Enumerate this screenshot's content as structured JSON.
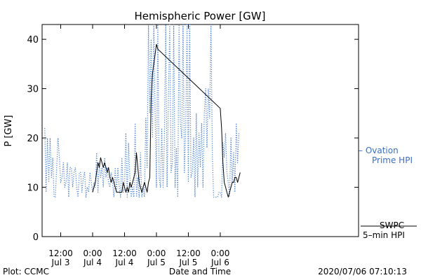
{
  "chart_data": {
    "type": "line",
    "title": "Hemispheric Power [GW]",
    "xlabel": "Date and Time",
    "ylabel": "P [GW]",
    "ylim": [
      0,
      43
    ],
    "xlim": [
      -19,
      100
    ],
    "x_unit": "hours from 2020-07-04 00:00",
    "yticks": [
      0,
      10,
      20,
      30,
      40
    ],
    "xticks": [
      {
        "x": -12,
        "time": "12:00",
        "day": "Jul 3"
      },
      {
        "x": 0,
        "time": "0:00",
        "day": "Jul 4"
      },
      {
        "x": 12,
        "time": "12:00",
        "day": "Jul 4"
      },
      {
        "x": 24,
        "time": "0:00",
        "day": "Jul 5"
      },
      {
        "x": 36,
        "time": "12:00",
        "day": "Jul 5"
      },
      {
        "x": 48,
        "time": "0:00",
        "day": "Jul 6"
      }
    ],
    "legend_placement": "right",
    "series": [
      {
        "name": "Ovation Prime HPI",
        "legend_dash": "–",
        "color": "#4a7fd0",
        "style": "dotted",
        "points": [
          [
            -18,
            22
          ],
          [
            -17.5,
            9
          ],
          [
            -17,
            20
          ],
          [
            -16.5,
            11
          ],
          [
            -16,
            20
          ],
          [
            -15.5,
            12
          ],
          [
            -15,
            16
          ],
          [
            -14.5,
            8
          ],
          [
            -14,
            8
          ],
          [
            -13.5,
            14
          ],
          [
            -13,
            20
          ],
          [
            -12.5,
            16
          ],
          [
            -12,
            11
          ],
          [
            -11.5,
            12
          ],
          [
            -11,
            15
          ],
          [
            -10.5,
            10
          ],
          [
            -10,
            11
          ],
          [
            -9.5,
            15
          ],
          [
            -9,
            8
          ],
          [
            -8.5,
            14
          ],
          [
            -8,
            14
          ],
          [
            -7.5,
            10
          ],
          [
            -7,
            13
          ],
          [
            -6.5,
            14
          ],
          [
            -6,
            10
          ],
          [
            -5.5,
            8
          ],
          [
            -5,
            13
          ],
          [
            -4.5,
            13
          ],
          [
            -4,
            9
          ],
          [
            -3.5,
            12
          ],
          [
            -3,
            13
          ],
          [
            -2.5,
            8
          ],
          [
            -2,
            10
          ],
          [
            -1.5,
            9
          ],
          [
            -1,
            13
          ],
          [
            -0.5,
            11
          ],
          [
            0,
            9
          ],
          [
            0.5,
            11
          ],
          [
            1,
            10
          ],
          [
            1.5,
            17
          ],
          [
            2,
            9
          ],
          [
            2.5,
            15
          ],
          [
            3,
            12
          ],
          [
            3.5,
            14
          ],
          [
            4,
            10
          ],
          [
            4.5,
            16
          ],
          [
            5,
            12
          ],
          [
            5.5,
            14
          ],
          [
            6,
            11
          ],
          [
            6.5,
            10
          ],
          [
            7,
            13
          ],
          [
            7.5,
            11
          ],
          [
            8,
            8
          ],
          [
            8.5,
            14
          ],
          [
            9,
            9
          ],
          [
            9.5,
            14
          ],
          [
            10,
            10
          ],
          [
            10.5,
            8
          ],
          [
            11,
            16
          ],
          [
            11.5,
            9
          ],
          [
            12,
            10
          ],
          [
            12.5,
            21
          ],
          [
            13,
            8
          ],
          [
            13.5,
            19
          ],
          [
            14,
            12
          ],
          [
            14.5,
            8
          ],
          [
            15,
            10
          ],
          [
            15.5,
            8
          ],
          [
            16,
            23
          ],
          [
            16.5,
            8
          ],
          [
            17,
            12
          ],
          [
            17.5,
            8
          ],
          [
            18,
            17
          ],
          [
            18.5,
            8
          ],
          [
            19,
            10
          ],
          [
            19.5,
            8
          ],
          [
            20,
            24
          ],
          [
            20.5,
            14
          ],
          [
            21,
            43
          ],
          [
            21.5,
            25
          ],
          [
            22,
            40
          ],
          [
            22.5,
            20
          ],
          [
            23,
            43
          ],
          [
            23.5,
            25
          ],
          [
            24,
            10
          ],
          [
            24.5,
            43
          ],
          [
            25,
            12
          ],
          [
            25.5,
            10
          ],
          [
            26,
            22
          ],
          [
            26.5,
            10
          ],
          [
            27,
            20
          ],
          [
            27.5,
            43
          ],
          [
            28,
            10
          ],
          [
            28.5,
            28
          ],
          [
            29,
            43
          ],
          [
            29.5,
            13
          ],
          [
            30,
            15
          ],
          [
            30.5,
            43
          ],
          [
            31,
            10
          ],
          [
            31.5,
            18
          ],
          [
            32,
            8
          ],
          [
            32.5,
            43
          ],
          [
            33,
            23
          ],
          [
            33.5,
            20
          ],
          [
            34,
            43
          ],
          [
            34.5,
            13
          ],
          [
            35,
            22
          ],
          [
            35.5,
            43
          ],
          [
            36,
            11
          ],
          [
            36.5,
            43
          ],
          [
            37,
            12
          ],
          [
            37.5,
            13
          ],
          [
            38,
            20
          ],
          [
            38.5,
            8
          ],
          [
            39,
            25
          ],
          [
            39.5,
            10
          ],
          [
            40,
            21
          ],
          [
            40.5,
            14
          ],
          [
            41,
            23
          ],
          [
            41.5,
            10
          ],
          [
            42,
            25
          ],
          [
            42.5,
            30
          ],
          [
            43,
            18
          ],
          [
            43.5,
            30
          ],
          [
            44,
            24
          ],
          [
            44.5,
            43
          ],
          [
            45,
            17
          ],
          [
            45.5,
            8
          ],
          [
            46,
            8
          ],
          [
            46.5,
            8
          ],
          [
            47,
            8
          ],
          [
            47.5,
            9
          ],
          [
            48,
            9
          ],
          [
            48.5,
            8
          ],
          [
            49,
            19
          ],
          [
            49.5,
            16
          ],
          [
            50,
            21
          ],
          [
            50.5,
            13
          ],
          [
            51,
            11
          ],
          [
            51.5,
            8
          ],
          [
            52,
            20
          ],
          [
            52.5,
            11
          ],
          [
            53,
            17
          ],
          [
            53.5,
            9
          ],
          [
            54,
            23
          ],
          [
            54.5,
            15
          ],
          [
            55,
            21
          ]
        ]
      },
      {
        "name": "SWPC 5-min HPI",
        "color": "#000000",
        "style": "solid",
        "points": [
          [
            0,
            9
          ],
          [
            1,
            11
          ],
          [
            1.5,
            13
          ],
          [
            2,
            15
          ],
          [
            2.5,
            14
          ],
          [
            3,
            16
          ],
          [
            3.5,
            15
          ],
          [
            4,
            14
          ],
          [
            4.5,
            15
          ],
          [
            5,
            14
          ],
          [
            5.5,
            13
          ],
          [
            6,
            14
          ],
          [
            6.5,
            12
          ],
          [
            7,
            11
          ],
          [
            7.5,
            12
          ],
          [
            8,
            11
          ],
          [
            8.5,
            10
          ],
          [
            9,
            9
          ],
          [
            10,
            9
          ],
          [
            11,
            9
          ],
          [
            11.5,
            11
          ],
          [
            12,
            10
          ],
          [
            12.5,
            9
          ],
          [
            13,
            10
          ],
          [
            13.5,
            9
          ],
          [
            14,
            11
          ],
          [
            14.5,
            10
          ],
          [
            15,
            11
          ],
          [
            15.5,
            12
          ],
          [
            16,
            13
          ],
          [
            16.5,
            17
          ],
          [
            17,
            14
          ],
          [
            17.5,
            11
          ],
          [
            18,
            10
          ],
          [
            18.5,
            9
          ],
          [
            19,
            10
          ],
          [
            19.5,
            11
          ],
          [
            20,
            10
          ],
          [
            20.5,
            9
          ],
          [
            21,
            11
          ],
          [
            21.5,
            12
          ],
          [
            22,
            28
          ],
          [
            22.5,
            33
          ],
          [
            23,
            35
          ],
          [
            23.5,
            37
          ],
          [
            24,
            39
          ],
          [
            24.5,
            38
          ],
          [
            48,
            26
          ],
          [
            48.5,
            22
          ],
          [
            49,
            15
          ],
          [
            49.5,
            11
          ],
          [
            50,
            10
          ],
          [
            50.5,
            9
          ],
          [
            51,
            8
          ],
          [
            51.5,
            9
          ],
          [
            52,
            10
          ],
          [
            52.5,
            11
          ],
          [
            53,
            11
          ],
          [
            53.5,
            12
          ],
          [
            54,
            12
          ],
          [
            54.5,
            11
          ],
          [
            55,
            12
          ],
          [
            55.5,
            13
          ]
        ]
      }
    ]
  },
  "legend": {
    "ovation_line1": "– Ovation",
    "ovation_line2": "Prime HPI",
    "swpc_line1": "SWPC",
    "swpc_line2": "5–min HPI"
  },
  "footer": {
    "left": "Plot: CCMC",
    "right": "2020/07/06 07:10:13"
  }
}
